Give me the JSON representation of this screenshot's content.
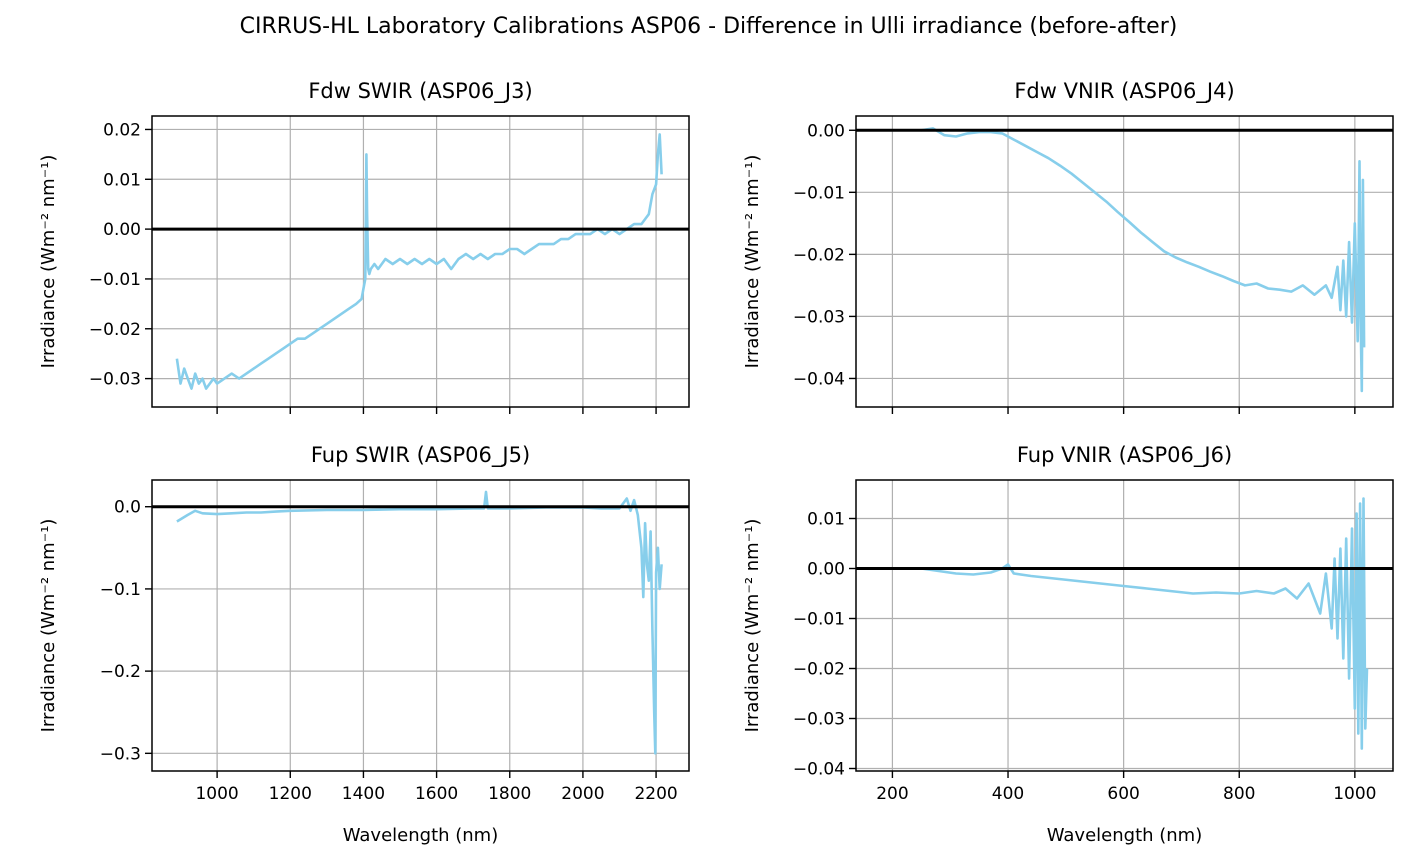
{
  "figure": {
    "title": "CIRRUS-HL Laboratory Calibrations ASP06 - Difference in Ulli irradiance (before-after)"
  },
  "colors": {
    "series": "#87ceeb",
    "zero_line": "#000000",
    "grid": "#b0b0b0"
  },
  "chart_data": [
    {
      "type": "line",
      "title": "Fdw SWIR (ASP06_J3)",
      "xlabel": "",
      "ylabel": "Irradiance (Wm⁻² nm⁻¹)",
      "xlim": [
        822,
        2290
      ],
      "ylim": [
        -0.0357,
        0.0227
      ],
      "xticks": [
        1000,
        1200,
        1400,
        1600,
        1800,
        2000,
        2200
      ],
      "xtick_labels": [
        "",
        "",
        "",
        "",
        "",
        "",
        ""
      ],
      "yticks": [
        -0.03,
        -0.02,
        -0.01,
        0.0,
        0.01,
        0.02
      ],
      "ytick_labels": [
        "−0.03",
        "−0.02",
        "−0.01",
        "0.00",
        "0.01",
        "0.02"
      ],
      "grid": true,
      "hline": 0,
      "series": [
        {
          "x": [
            890,
            900,
            910,
            920,
            930,
            940,
            950,
            960,
            970,
            980,
            990,
            1000,
            1020,
            1040,
            1060,
            1080,
            1100,
            1120,
            1140,
            1160,
            1180,
            1200,
            1220,
            1240,
            1260,
            1280,
            1300,
            1320,
            1340,
            1360,
            1380,
            1395,
            1400,
            1405,
            1408,
            1410,
            1413,
            1416,
            1420,
            1430,
            1440,
            1460,
            1480,
            1500,
            1520,
            1540,
            1560,
            1580,
            1600,
            1620,
            1640,
            1660,
            1680,
            1700,
            1720,
            1740,
            1760,
            1780,
            1800,
            1820,
            1840,
            1860,
            1880,
            1900,
            1920,
            1940,
            1960,
            1980,
            2000,
            2020,
            2040,
            2060,
            2080,
            2100,
            2120,
            2140,
            2150,
            2160,
            2170,
            2180,
            2190,
            2200,
            2205,
            2210,
            2215
          ],
          "y": [
            -0.026,
            -0.031,
            -0.028,
            -0.03,
            -0.032,
            -0.029,
            -0.031,
            -0.03,
            -0.032,
            -0.031,
            -0.03,
            -0.031,
            -0.03,
            -0.029,
            -0.03,
            -0.029,
            -0.028,
            -0.027,
            -0.026,
            -0.025,
            -0.024,
            -0.023,
            -0.022,
            -0.022,
            -0.021,
            -0.02,
            -0.019,
            -0.018,
            -0.017,
            -0.016,
            -0.015,
            -0.014,
            -0.012,
            -0.01,
            0.015,
            0.003,
            -0.008,
            -0.009,
            -0.008,
            -0.007,
            -0.008,
            -0.006,
            -0.007,
            -0.006,
            -0.007,
            -0.006,
            -0.007,
            -0.006,
            -0.007,
            -0.006,
            -0.008,
            -0.006,
            -0.005,
            -0.006,
            -0.005,
            -0.006,
            -0.005,
            -0.005,
            -0.004,
            -0.004,
            -0.005,
            -0.004,
            -0.003,
            -0.003,
            -0.003,
            -0.002,
            -0.002,
            -0.001,
            -0.001,
            -0.001,
            0.0,
            -0.001,
            0.0,
            -0.001,
            0.0,
            0.001,
            0.001,
            0.001,
            0.002,
            0.003,
            0.007,
            0.009,
            0.015,
            0.019,
            0.011
          ]
        }
      ]
    },
    {
      "type": "line",
      "title": "Fdw VNIR (ASP06_J4)",
      "xlabel": "",
      "ylabel": "Irradiance (Wm⁻² nm⁻¹)",
      "xlim": [
        137,
        1066
      ],
      "ylim": [
        -0.0446,
        0.0023
      ],
      "xticks": [
        200,
        400,
        600,
        800,
        1000
      ],
      "xtick_labels": [
        "",
        "",
        "",
        "",
        ""
      ],
      "yticks": [
        -0.04,
        -0.03,
        -0.02,
        -0.01,
        0.0
      ],
      "ytick_labels": [
        "−0.04",
        "−0.03",
        "−0.02",
        "−0.01",
        "0.00"
      ],
      "grid": true,
      "hline": 0,
      "series": [
        {
          "x": [
            250,
            270,
            290,
            310,
            330,
            350,
            370,
            390,
            410,
            430,
            450,
            470,
            490,
            510,
            530,
            550,
            570,
            590,
            610,
            630,
            650,
            670,
            690,
            710,
            730,
            750,
            770,
            790,
            810,
            830,
            850,
            870,
            890,
            910,
            930,
            950,
            960,
            970,
            975,
            980,
            985,
            990,
            995,
            1000,
            1005,
            1008,
            1010,
            1012,
            1014,
            1016
          ],
          "y": [
            0.0,
            0.0003,
            -0.0008,
            -0.001,
            -0.0005,
            -0.0003,
            -0.0003,
            -0.0005,
            -0.0015,
            -0.0025,
            -0.0035,
            -0.0045,
            -0.0057,
            -0.007,
            -0.0085,
            -0.01,
            -0.0115,
            -0.0132,
            -0.0148,
            -0.0165,
            -0.018,
            -0.0195,
            -0.0205,
            -0.0213,
            -0.022,
            -0.0228,
            -0.0235,
            -0.0243,
            -0.025,
            -0.0247,
            -0.0255,
            -0.0257,
            -0.026,
            -0.025,
            -0.0265,
            -0.025,
            -0.027,
            -0.022,
            -0.029,
            -0.021,
            -0.03,
            -0.018,
            -0.031,
            -0.015,
            -0.034,
            -0.005,
            -0.03,
            -0.042,
            -0.008,
            -0.035
          ]
        }
      ]
    },
    {
      "type": "line",
      "title": "Fup SWIR (ASP06_J5)",
      "xlabel": "Wavelength (nm)",
      "ylabel": "Irradiance (Wm⁻² nm⁻¹)",
      "xlim": [
        822,
        2290
      ],
      "ylim": [
        -0.3215,
        0.0325
      ],
      "xticks": [
        1000,
        1200,
        1400,
        1600,
        1800,
        2000,
        2200
      ],
      "xtick_labels": [
        "1000",
        "1200",
        "1400",
        "1600",
        "1800",
        "2000",
        "2200"
      ],
      "yticks": [
        -0.3,
        -0.2,
        -0.1,
        0.0
      ],
      "ytick_labels": [
        "−0.3",
        "−0.2",
        "−0.1",
        "0.0"
      ],
      "grid": true,
      "hline": 0,
      "series": [
        {
          "x": [
            890,
            920,
            940,
            960,
            1000,
            1040,
            1080,
            1120,
            1160,
            1200,
            1300,
            1400,
            1500,
            1600,
            1700,
            1730,
            1735,
            1740,
            1760,
            1800,
            1900,
            2000,
            2050,
            2100,
            2120,
            2130,
            2140,
            2150,
            2160,
            2165,
            2170,
            2175,
            2180,
            2185,
            2190,
            2195,
            2198,
            2200,
            2205,
            2210,
            2215
          ],
          "y": [
            -0.018,
            -0.01,
            -0.005,
            -0.008,
            -0.009,
            -0.008,
            -0.007,
            -0.007,
            -0.006,
            -0.005,
            -0.004,
            -0.004,
            -0.003,
            -0.003,
            -0.002,
            -0.002,
            0.018,
            -0.002,
            -0.002,
            -0.002,
            -0.001,
            -0.001,
            -0.002,
            -0.002,
            0.01,
            -0.005,
            0.008,
            -0.01,
            -0.05,
            -0.11,
            -0.02,
            -0.07,
            -0.09,
            -0.03,
            -0.15,
            -0.25,
            -0.3,
            -0.08,
            -0.05,
            -0.1,
            -0.07
          ]
        }
      ]
    },
    {
      "type": "line",
      "title": "Fup VNIR (ASP06_J6)",
      "xlabel": "Wavelength (nm)",
      "ylabel": "Irradiance (Wm⁻² nm⁻¹)",
      "xlim": [
        137,
        1066
      ],
      "ylim": [
        -0.0405,
        0.0177
      ],
      "xticks": [
        200,
        400,
        600,
        800,
        1000
      ],
      "xtick_labels": [
        "200",
        "400",
        "600",
        "800",
        "1000"
      ],
      "yticks": [
        -0.04,
        -0.03,
        -0.02,
        -0.01,
        0.0,
        0.01
      ],
      "ytick_labels": [
        "−0.04",
        "−0.03",
        "−0.02",
        "−0.01",
        "0.00",
        "0.01"
      ],
      "grid": true,
      "hline": 0,
      "series": [
        {
          "x": [
            250,
            280,
            310,
            340,
            370,
            390,
            400,
            410,
            440,
            480,
            520,
            560,
            600,
            640,
            680,
            720,
            760,
            800,
            830,
            860,
            880,
            900,
            920,
            940,
            950,
            960,
            965,
            970,
            975,
            980,
            985,
            990,
            995,
            1000,
            1003,
            1006,
            1009,
            1012,
            1015,
            1018,
            1021
          ],
          "y": [
            0.0,
            -0.0005,
            -0.001,
            -0.0012,
            -0.0008,
            0.0,
            0.0008,
            -0.001,
            -0.0015,
            -0.002,
            -0.0025,
            -0.003,
            -0.0035,
            -0.004,
            -0.0045,
            -0.005,
            -0.0048,
            -0.005,
            -0.0045,
            -0.005,
            -0.004,
            -0.006,
            -0.003,
            -0.009,
            -0.001,
            -0.012,
            0.002,
            -0.014,
            0.004,
            -0.018,
            0.006,
            -0.022,
            0.008,
            -0.028,
            0.011,
            -0.033,
            0.013,
            -0.036,
            0.014,
            -0.032,
            -0.02
          ]
        }
      ]
    }
  ]
}
